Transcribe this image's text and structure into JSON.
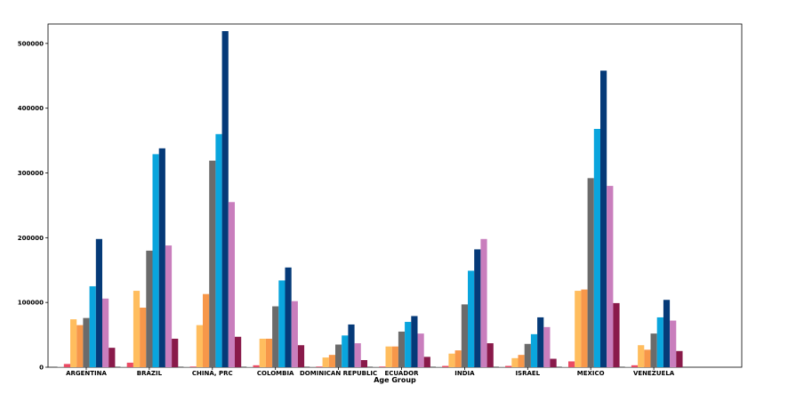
{
  "chart_data": {
    "type": "bar",
    "xlabel": "Age Group",
    "ylabel": "",
    "ylim": [
      0,
      530000
    ],
    "yticks": [
      0,
      100000,
      200000,
      300000,
      400000,
      500000
    ],
    "grid": false,
    "legend": "none",
    "categories": [
      "ARGENTINA",
      "BRAZIL",
      "CHINA, PRC",
      "COLOMBIA",
      "DOMINICAN REPUBLIC",
      "ECUADOR",
      "INDIA",
      "ISRAEL",
      "MEXICO",
      "VENEZUELA"
    ],
    "series": [
      {
        "color": "#d2d2d2",
        "values": [
          500,
          500,
          500,
          1000,
          500,
          500,
          500,
          500,
          1000,
          500
        ]
      },
      {
        "color": "#ea4a63",
        "values": [
          5000,
          7000,
          1000,
          3000,
          1000,
          1000,
          2000,
          2000,
          9000,
          3000
        ]
      },
      {
        "color": "#ffbd5e",
        "values": [
          74000,
          118000,
          65000,
          44000,
          15000,
          32000,
          21000,
          14000,
          118000,
          34000
        ]
      },
      {
        "color": "#f7974a",
        "values": [
          65000,
          92000,
          113000,
          44000,
          19000,
          32000,
          26000,
          19000,
          120000,
          27000
        ]
      },
      {
        "color": "#6b6b6b",
        "values": [
          76000,
          180000,
          319000,
          94000,
          35000,
          55000,
          97000,
          36000,
          292000,
          52000
        ]
      },
      {
        "color": "#0aa5dd",
        "values": [
          125000,
          329000,
          360000,
          134000,
          49000,
          70000,
          149000,
          51000,
          368000,
          77000
        ]
      },
      {
        "color": "#053a78",
        "values": [
          198000,
          338000,
          519000,
          154000,
          66000,
          79000,
          182000,
          77000,
          458000,
          104000
        ]
      },
      {
        "color": "#c97ebd",
        "values": [
          106000,
          188000,
          255000,
          102000,
          37000,
          52000,
          198000,
          62000,
          280000,
          72000
        ]
      },
      {
        "color": "#891a4a",
        "values": [
          30000,
          44000,
          47000,
          34000,
          11000,
          16000,
          37000,
          13000,
          99000,
          25000
        ]
      }
    ]
  }
}
